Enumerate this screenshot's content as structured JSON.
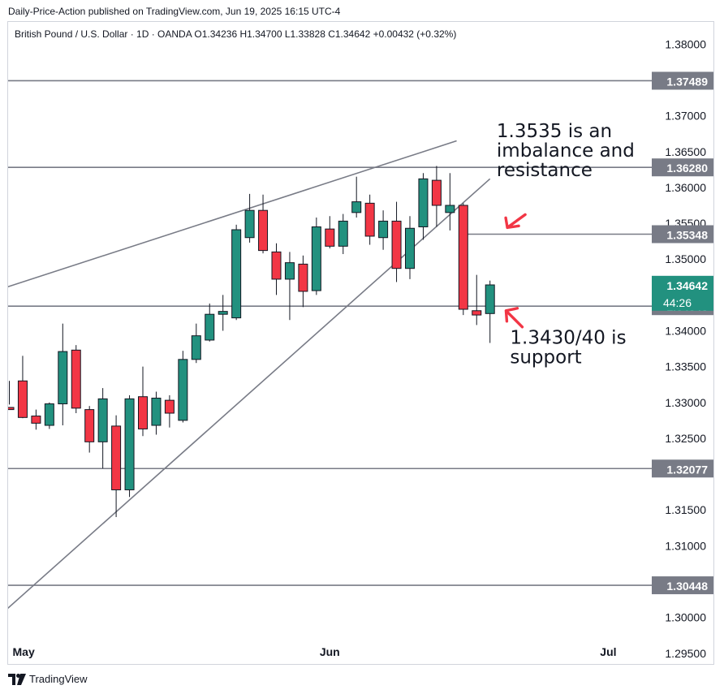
{
  "header": {
    "published_line": "Daily-Price-Action published on TradingView.com, Jun 19, 2025 16:15 UTC-4"
  },
  "footer": {
    "brand": "TradingView",
    "logo_icon": "tradingview-logo-icon"
  },
  "chart_data": {
    "type": "candlestick",
    "legend_line": "British Pound / U.S. Dollar · 1D · OANDA  O1.34236  H1.34700  L1.33828  C1.34642  +0.00432 (+0.32%)",
    "symbol": "British Pound / U.S. Dollar",
    "interval": "1D",
    "exchange": "OANDA",
    "ohlc": {
      "open": "1.34236",
      "high": "1.34700",
      "low": "1.33828",
      "close": "1.34642",
      "change": "+0.00432 (+0.32%)"
    },
    "y_range": [
      1.2935,
      1.3831
    ],
    "y_ticks": [
      "1.38000",
      "1.37000",
      "1.36500",
      "1.36000",
      "1.35500",
      "1.35000",
      "1.34000",
      "1.33500",
      "1.33000",
      "1.32500",
      "1.31500",
      "1.31000",
      "1.30000",
      "1.29500"
    ],
    "x_ticks": [
      {
        "label": "May",
        "index": 0
      },
      {
        "label": "Jun",
        "index": 23
      },
      {
        "label": "Jul",
        "index": 44
      }
    ],
    "candles": [
      {
        "o": 1.3293,
        "h": 1.333,
        "l": 1.3297,
        "c": 1.329
      },
      {
        "o": 1.333,
        "h": 1.3365,
        "l": 1.3278,
        "c": 1.3279
      },
      {
        "o": 1.3281,
        "h": 1.329,
        "l": 1.3262,
        "c": 1.3271
      },
      {
        "o": 1.3268,
        "h": 1.33,
        "l": 1.3263,
        "c": 1.3298
      },
      {
        "o": 1.3298,
        "h": 1.341,
        "l": 1.3268,
        "c": 1.3371
      },
      {
        "o": 1.3373,
        "h": 1.338,
        "l": 1.3285,
        "c": 1.3292
      },
      {
        "o": 1.329,
        "h": 1.3295,
        "l": 1.323,
        "c": 1.3245
      },
      {
        "o": 1.3245,
        "h": 1.332,
        "l": 1.3208,
        "c": 1.3305
      },
      {
        "o": 1.3267,
        "h": 1.3282,
        "l": 1.314,
        "c": 1.3178
      },
      {
        "o": 1.3178,
        "h": 1.331,
        "l": 1.3168,
        "c": 1.3305
      },
      {
        "o": 1.3308,
        "h": 1.335,
        "l": 1.3253,
        "c": 1.3263
      },
      {
        "o": 1.3268,
        "h": 1.3315,
        "l": 1.3255,
        "c": 1.3306
      },
      {
        "o": 1.3303,
        "h": 1.331,
        "l": 1.3265,
        "c": 1.3285
      },
      {
        "o": 1.3275,
        "h": 1.3372,
        "l": 1.3272,
        "c": 1.336
      },
      {
        "o": 1.336,
        "h": 1.341,
        "l": 1.3355,
        "c": 1.3393
      },
      {
        "o": 1.3387,
        "h": 1.3438,
        "l": 1.3385,
        "c": 1.3423
      },
      {
        "o": 1.3423,
        "h": 1.345,
        "l": 1.34,
        "c": 1.3427
      },
      {
        "o": 1.3418,
        "h": 1.3548,
        "l": 1.3415,
        "c": 1.3541
      },
      {
        "o": 1.353,
        "h": 1.3591,
        "l": 1.3523,
        "c": 1.3568
      },
      {
        "o": 1.3568,
        "h": 1.359,
        "l": 1.3508,
        "c": 1.3512
      },
      {
        "o": 1.351,
        "h": 1.3522,
        "l": 1.345,
        "c": 1.3472
      },
      {
        "o": 1.3472,
        "h": 1.351,
        "l": 1.3415,
        "c": 1.3495
      },
      {
        "o": 1.3493,
        "h": 1.3505,
        "l": 1.3433,
        "c": 1.3455
      },
      {
        "o": 1.3456,
        "h": 1.3558,
        "l": 1.345,
        "c": 1.3545
      },
      {
        "o": 1.3542,
        "h": 1.356,
        "l": 1.3515,
        "c": 1.3518
      },
      {
        "o": 1.3518,
        "h": 1.3563,
        "l": 1.3507,
        "c": 1.3553
      },
      {
        "o": 1.3565,
        "h": 1.3615,
        "l": 1.3558,
        "c": 1.358
      },
      {
        "o": 1.3578,
        "h": 1.359,
        "l": 1.352,
        "c": 1.3532
      },
      {
        "o": 1.353,
        "h": 1.3568,
        "l": 1.3513,
        "c": 1.3553
      },
      {
        "o": 1.3553,
        "h": 1.358,
        "l": 1.3468,
        "c": 1.3487
      },
      {
        "o": 1.3487,
        "h": 1.356,
        "l": 1.3472,
        "c": 1.3543
      },
      {
        "o": 1.3545,
        "h": 1.362,
        "l": 1.3527,
        "c": 1.3612
      },
      {
        "o": 1.361,
        "h": 1.363,
        "l": 1.3545,
        "c": 1.3575
      },
      {
        "o": 1.3565,
        "h": 1.362,
        "l": 1.354,
        "c": 1.3575
      },
      {
        "o": 1.3575,
        "h": 1.3578,
        "l": 1.3422,
        "c": 1.343
      },
      {
        "o": 1.3428,
        "h": 1.3478,
        "l": 1.3408,
        "c": 1.3422
      },
      {
        "o": 1.3424,
        "h": 1.347,
        "l": 1.3383,
        "c": 1.3464
      }
    ],
    "horizontal_levels": [
      {
        "price": 1.37489,
        "label": "1.37489",
        "start_index": -1
      },
      {
        "price": 1.3628,
        "label": "1.36280",
        "start_index": -1
      },
      {
        "price": 1.35348,
        "label": "1.35348",
        "start_index": 34
      },
      {
        "price": 1.34343,
        "label": "1.34343",
        "start_index": -1
      },
      {
        "price": 1.32077,
        "label": "1.32077",
        "start_index": -1
      },
      {
        "price": 1.30448,
        "label": "1.30448",
        "start_index": -1
      }
    ],
    "current_price": {
      "label": "1.34642",
      "countdown": "44:26",
      "price": 1.34642
    },
    "trend_lines": [
      {
        "from": {
          "index": -1,
          "price": 1.3456
        },
        "to": {
          "index": 33.5,
          "price": 1.3665
        }
      },
      {
        "from": {
          "index": -1,
          "price": 1.2998
        },
        "to": {
          "index": 36,
          "price": 1.3612
        }
      }
    ],
    "annotations": [
      {
        "name": "resistance-annotation",
        "lines": [
          "1.3535 is an",
          "imbalance and",
          "resistance"
        ],
        "anchor_index": 36.5,
        "anchor_price": 1.367
      },
      {
        "name": "support-annotation",
        "lines": [
          "1.3430/40 is",
          "support"
        ],
        "anchor_index": 37.5,
        "anchor_price": 1.3382
      }
    ],
    "arrows": [
      {
        "name": "resistance-arrow-icon",
        "tip_index": 37.3,
        "tip_price": 1.3544
      },
      {
        "name": "support-arrow-icon",
        "tip_index": 37.2,
        "tip_price": 1.3428
      }
    ],
    "colors": {
      "up": "#22917f",
      "down": "#f23645",
      "wick": "#131722",
      "level_line": "#787b86",
      "level_label_bg": "#787b86",
      "price_label_bg": "#22917f",
      "arrow": "#f23645",
      "trend_line": "#787b86"
    }
  }
}
